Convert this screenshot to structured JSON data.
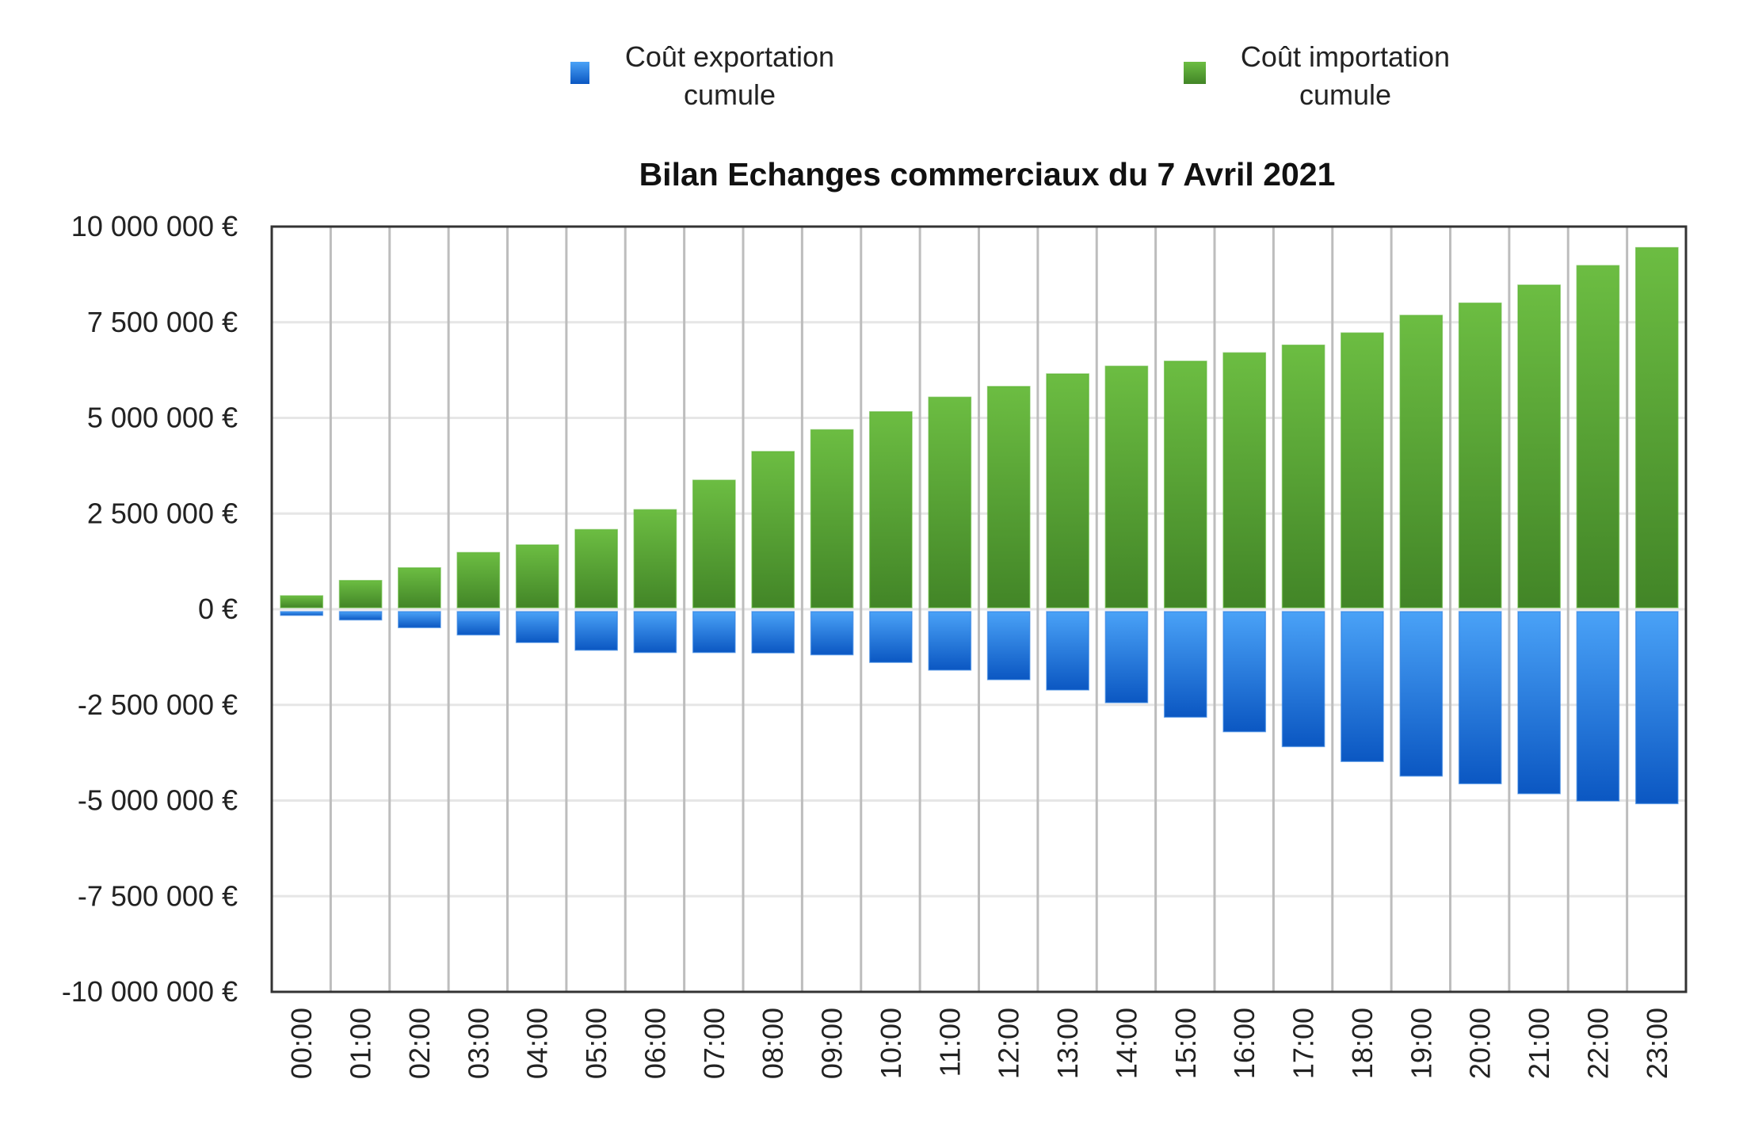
{
  "chart_data": {
    "type": "bar",
    "title": "Bilan Echanges commerciaux du 7 Avril 2021",
    "xlabel": "",
    "ylabel": "",
    "ylim": [
      -10000000,
      10000000
    ],
    "grid": true,
    "legend_position": "top",
    "categories": [
      "00:00",
      "01:00",
      "02:00",
      "03:00",
      "04:00",
      "05:00",
      "06:00",
      "07:00",
      "08:00",
      "09:00",
      "10:00",
      "11:00",
      "12:00",
      "13:00",
      "14:00",
      "15:00",
      "16:00",
      "17:00",
      "18:00",
      "19:00",
      "20:00",
      "21:00",
      "22:00",
      "23:00"
    ],
    "yticks": [
      10000000,
      7500000,
      5000000,
      2500000,
      0,
      -2500000,
      -5000000,
      -7500000,
      -10000000
    ],
    "ytick_labels": [
      "10 000 000 €",
      "7 500 000 €",
      "5 000 000 €",
      "2 500 000 €",
      "0 €",
      "-2 500 000 €",
      "-5 000 000 €",
      "-7 500 000 €",
      "-10 000 000 €"
    ],
    "series": [
      {
        "name": "Coût exportation cumule",
        "legend_lines": [
          "Coût exportation",
          "cumule"
        ],
        "color_top": "#4aa2f7",
        "color_bottom": "#0b57c2",
        "values": [
          -160000,
          -280000,
          -480000,
          -670000,
          -870000,
          -1070000,
          -1130000,
          -1130000,
          -1140000,
          -1190000,
          -1390000,
          -1590000,
          -1840000,
          -2110000,
          -2440000,
          -2820000,
          -3200000,
          -3590000,
          -3980000,
          -4360000,
          -4560000,
          -4820000,
          -5010000,
          -5080000
        ]
      },
      {
        "name": "Coût importation cumule",
        "legend_lines": [
          "Coût importation",
          "cumule"
        ],
        "color_top": "#6cbd42",
        "color_bottom": "#428527",
        "values": [
          350000,
          750000,
          1080000,
          1480000,
          1680000,
          2080000,
          2600000,
          3370000,
          4120000,
          4690000,
          5160000,
          5540000,
          5820000,
          6150000,
          6350000,
          6480000,
          6700000,
          6900000,
          7220000,
          7680000,
          8000000,
          8470000,
          8980000,
          9450000
        ]
      }
    ]
  }
}
